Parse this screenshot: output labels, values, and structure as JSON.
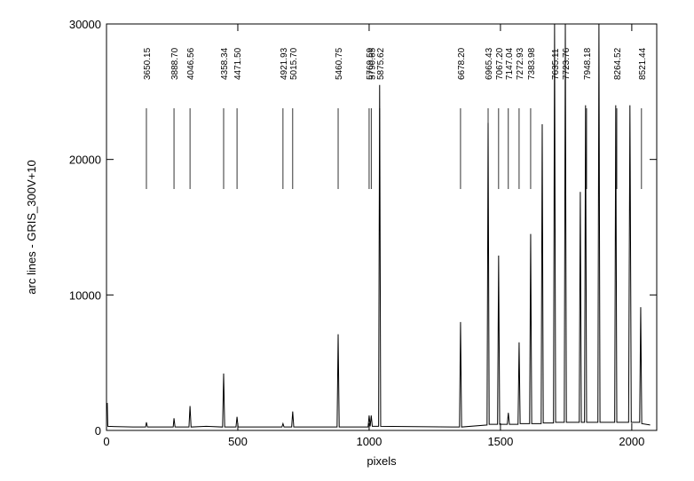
{
  "chart_data": {
    "type": "line",
    "xlabel": "pixels",
    "ylabel": "arc lines - GRIS_300V+10",
    "xlim": [
      0,
      2095
    ],
    "ylim": [
      0,
      30000
    ],
    "xticks": [
      0,
      500,
      1000,
      1500,
      2000
    ],
    "yticks": [
      0,
      10000,
      20000,
      30000
    ],
    "color": "#000000",
    "x": [
      0,
      3,
      5,
      100,
      149,
      152,
      156,
      254,
      257,
      261,
      314,
      318,
      322,
      380,
      442,
      446,
      450,
      493,
      497,
      501,
      668,
      672,
      676,
      705,
      709,
      713,
      878,
      882,
      886,
      996,
      1000,
      1004,
      1008,
      1012,
      1036,
      1040,
      1044,
      1344,
      1348,
      1352,
      1449,
      1453,
      1457,
      1489,
      1493,
      1497,
      1526,
      1530,
      1534,
      1567,
      1571,
      1575,
      1611,
      1615,
      1619,
      1655,
      1659,
      1663,
      1702,
      1706,
      1710,
      1743,
      1747,
      1751,
      1800,
      1804,
      1808,
      1820,
      1824,
      1828,
      1871,
      1875,
      1879,
      1935,
      1939,
      1943,
      1988,
      1993,
      1996,
      1998,
      2030,
      2034,
      2038,
      2070
    ],
    "values": [
      2000,
      2000,
      300,
      250,
      250,
      600,
      250,
      250,
      900,
      250,
      250,
      1800,
      250,
      300,
      250,
      4200,
      250,
      250,
      1000,
      250,
      250,
      500,
      250,
      250,
      1400,
      250,
      250,
      7100,
      250,
      250,
      1100,
      300,
      1100,
      300,
      300,
      25500,
      300,
      250,
      8000,
      250,
      400,
      22700,
      450,
      450,
      12900,
      450,
      450,
      1300,
      450,
      450,
      6500,
      500,
      500,
      14500,
      500,
      500,
      22600,
      550,
      550,
      30000,
      600,
      600,
      30000,
      600,
      600,
      17600,
      600,
      600,
      24000,
      600,
      600,
      30000,
      600,
      600,
      24000,
      600,
      600,
      24000,
      10800,
      600,
      600,
      9100,
      500,
      400
    ],
    "lines": [
      {
        "label": "3650.15",
        "x": 152
      },
      {
        "label": "3888.70",
        "x": 257
      },
      {
        "label": "4046.56",
        "x": 318
      },
      {
        "label": "4358.34",
        "x": 446
      },
      {
        "label": "4471.50",
        "x": 497
      },
      {
        "label": "4921.93",
        "x": 672
      },
      {
        "label": "5015.70",
        "x": 709
      },
      {
        "label": "5460.75",
        "x": 882
      },
      {
        "label": "5769.59",
        "x": 1000
      },
      {
        "label": "5790.65",
        "x": 1008
      },
      {
        "label": "5875.62",
        "x": 1040
      },
      {
        "label": "6678.20",
        "x": 1348
      },
      {
        "label": "6965.43",
        "x": 1453
      },
      {
        "label": "7067.20",
        "x": 1493
      },
      {
        "label": "7147.04",
        "x": 1530
      },
      {
        "label": "7272.93",
        "x": 1571
      },
      {
        "label": "7383.98",
        "x": 1615
      },
      {
        "label": "7635.11",
        "x": 1706
      },
      {
        "label": "7723.76",
        "x": 1747
      },
      {
        "label": "7948.18",
        "x": 1828
      },
      {
        "label": "8264.52",
        "x": 1943
      },
      {
        "label": "8521.44",
        "x": 2037
      }
    ]
  }
}
